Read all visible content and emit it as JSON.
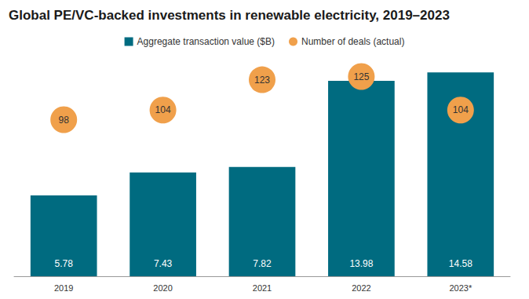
{
  "chart_data": {
    "type": "bar",
    "title": "Global PE/VC-backed investments in renewable electricity, 2019–2023",
    "categories": [
      "2019",
      "2020",
      "2021",
      "2022",
      "2023*"
    ],
    "series": [
      {
        "name": "Aggregate transaction value ($B)",
        "type": "bar",
        "color": "#006b80",
        "values": [
          5.78,
          7.43,
          7.82,
          13.98,
          14.58
        ]
      },
      {
        "name": "Number of deals (actual)",
        "type": "scatter",
        "marker": "circle",
        "color": "#f0a04b",
        "axis": "y2",
        "values": [
          98,
          104,
          123,
          125,
          104
        ]
      }
    ],
    "ylim": [
      0,
      16
    ],
    "y2lim": [
      0,
      140
    ],
    "data_labels": true,
    "tick_labels": "x",
    "grid": false,
    "legend": "top"
  }
}
